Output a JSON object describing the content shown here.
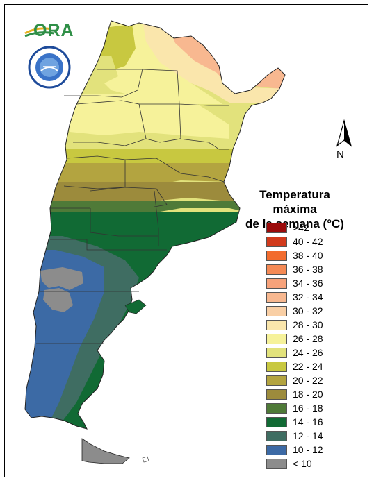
{
  "logo": {
    "text": "ORA"
  },
  "compass": {
    "label": "N"
  },
  "legend": {
    "title_line1": "Temperatura máxima",
    "title_line2": "de la semana (°C)",
    "items": [
      {
        "label": ">42",
        "color": "#9b0b0b"
      },
      {
        "label": "40 - 42",
        "color": "#d13a1c"
      },
      {
        "label": "38 - 40",
        "color": "#f26c2e"
      },
      {
        "label": "36 - 38",
        "color": "#f58a55"
      },
      {
        "label": "34 - 36",
        "color": "#f7a27a"
      },
      {
        "label": "32 - 34",
        "color": "#f8b890"
      },
      {
        "label": "30 - 32",
        "color": "#f9cfa5"
      },
      {
        "label": "28 - 30",
        "color": "#fae6ac"
      },
      {
        "label": "26 - 28",
        "color": "#f6f29a"
      },
      {
        "label": "24 - 26",
        "color": "#e2e27c"
      },
      {
        "label": "22 - 24",
        "color": "#c8c840"
      },
      {
        "label": "20 - 22",
        "color": "#b3a440"
      },
      {
        "label": "18 - 20",
        "color": "#9c8b3c"
      },
      {
        "label": "16 - 18",
        "color": "#4f7a38"
      },
      {
        "label": "14 - 16",
        "color": "#116a34"
      },
      {
        "label": "12 - 14",
        "color": "#3f6d62"
      },
      {
        "label": "10 - 12",
        "color": "#3c6aa5"
      },
      {
        "label": "< 10",
        "color": "#8c8c8c"
      }
    ]
  }
}
